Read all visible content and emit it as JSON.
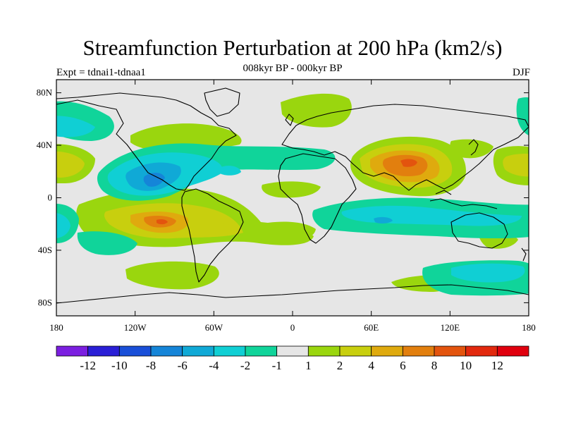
{
  "title": "Streamfunction Perturbation at 200 hPa (km2/s)",
  "subtitle": "008kyr BP - 000kyr BP",
  "expt_label": "Expt = tdnai1-tdnaa1",
  "season": "DJF",
  "lat_labels": [
    "80N",
    "40N",
    "0",
    "40S",
    "80S"
  ],
  "lon_labels": [
    "180",
    "120W",
    "60W",
    "0",
    "60E",
    "120E",
    "180"
  ],
  "colorbar": {
    "labels": [
      "-12",
      "-10",
      "-8",
      "-6",
      "-4",
      "-2",
      "-1",
      "1",
      "2",
      "4",
      "6",
      "8",
      "10",
      "12"
    ],
    "colors": [
      "#7b1fe0",
      "#2a1fd6",
      "#1a4fd8",
      "#1585d8",
      "#10a9d6",
      "#10cfd4",
      "#10d49a",
      "#e6e6e6",
      "#9ad60e",
      "#c8cf0e",
      "#dfaa0e",
      "#e27f0e",
      "#e3540e",
      "#e2290e",
      "#e0000e"
    ]
  },
  "palette": {
    "neutral": "#e6e6e6",
    "pos1": "#9ad60e",
    "pos2": "#c8cf0e",
    "pos4": "#dfaa0e",
    "pos6": "#e27f0e",
    "pos8": "#e3540e",
    "neg1": "#10d49a",
    "neg2": "#10cfd4",
    "neg4": "#10a9d6",
    "neg6": "#1585d8"
  }
}
